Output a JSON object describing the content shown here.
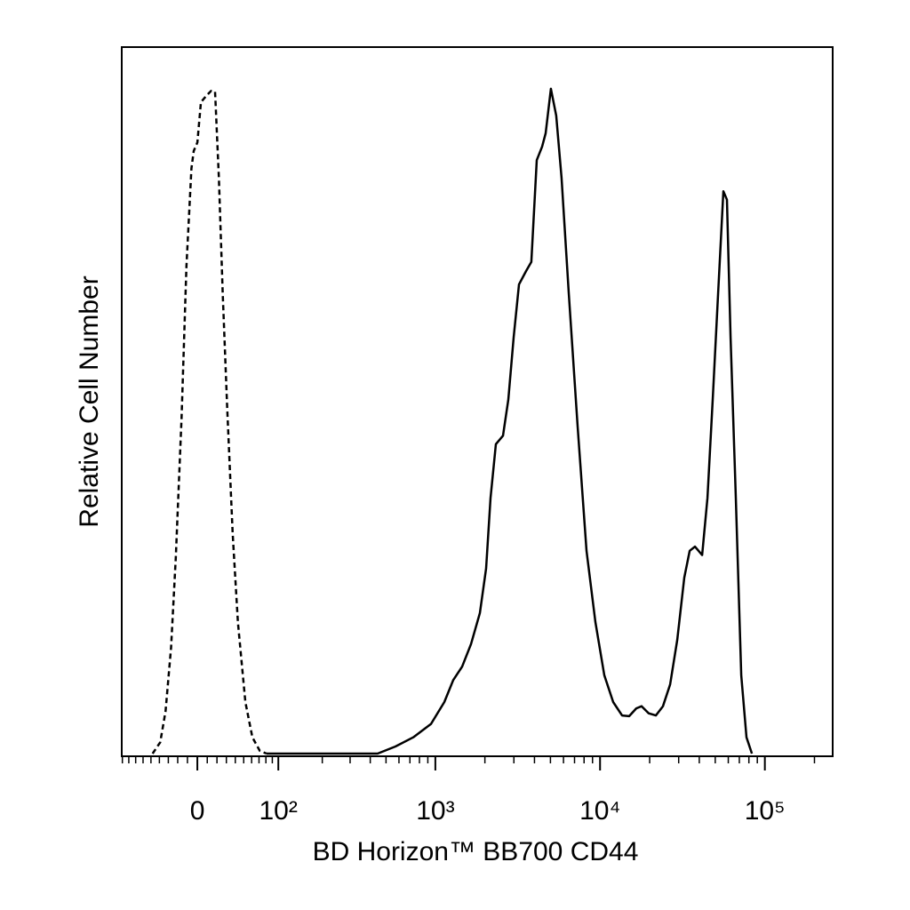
{
  "chart_data": {
    "type": "line",
    "xlabel": "BD Horizon™ BB700 CD44",
    "ylabel": "Relative Cell Number",
    "xscale": "biexponential",
    "xlim": [
      -91,
      258000
    ],
    "ylim": [
      0,
      100
    ],
    "xticks": [
      {
        "value": 0,
        "label": "0"
      },
      {
        "value": 100,
        "label": "10²"
      },
      {
        "value": 1000,
        "label": "10³"
      },
      {
        "value": 10000,
        "label": "10⁴"
      },
      {
        "value": 100000,
        "label": "10⁵"
      }
    ],
    "xminorticks": [
      -90,
      -80,
      -70,
      -60,
      -50,
      -40,
      -30,
      -20,
      -10,
      10,
      20,
      30,
      40,
      50,
      60,
      70,
      80,
      90,
      200,
      300,
      400,
      500,
      600,
      700,
      800,
      900,
      2000,
      3000,
      4000,
      5000,
      6000,
      7000,
      8000,
      9000,
      20000,
      30000,
      40000,
      50000,
      60000,
      70000,
      80000,
      90000,
      200000
    ],
    "series": [
      {
        "color": "#000000",
        "linestyle": "dashed",
        "x": [
          -48,
          -39,
          -33,
          -27,
          -22,
          -16,
          -11,
          -6,
          -3.6,
          0,
          3.6,
          9,
          14,
          18,
          22,
          26,
          31,
          37,
          43,
          52,
          61,
          71,
          81
        ],
        "values": [
          0,
          1.6,
          6,
          15,
          27.7,
          47.5,
          69,
          82.8,
          85.3,
          86.5,
          92.2,
          93.1,
          93.8,
          93.7,
          81.5,
          65.2,
          48.8,
          31.2,
          18.6,
          7.3,
          2.3,
          0.4,
          0
        ]
      },
      {
        "color": "#000000",
        "linestyle": "solid",
        "x": [
          81,
          444,
          571,
          733,
          941,
          1134,
          1284,
          1454,
          1647,
          1865,
          2034,
          2164,
          2333,
          2575,
          2776,
          2989,
          3221,
          3557,
          3830,
          4128,
          4446,
          4674,
          5033,
          5422,
          5841,
          6455,
          7308,
          8273,
          9367,
          10606,
          12010,
          13601,
          15019,
          16589,
          17870,
          19742,
          21809,
          24084,
          26611,
          29390,
          32458,
          34978,
          37670,
          41609,
          44842,
          48283,
          52034,
          56038,
          58896,
          61913,
          66694,
          71885,
          77400,
          83448
        ],
        "values": [
          0,
          0,
          1,
          2.3,
          4.2,
          7.3,
          10.4,
          12.3,
          15.5,
          19.9,
          26.2,
          36.2,
          43.8,
          45,
          50.1,
          58.9,
          66.4,
          68.3,
          69.6,
          84,
          85.9,
          87.8,
          94.1,
          90.3,
          81.5,
          65.2,
          46.3,
          28.7,
          18.6,
          11.1,
          7.3,
          5.4,
          5.3,
          6.4,
          6.7,
          5.7,
          5.4,
          6.7,
          9.8,
          16.1,
          24.9,
          28.7,
          29.3,
          28.1,
          36.2,
          50.1,
          65.2,
          79.6,
          78.4,
          58.9,
          36.2,
          11.1,
          2.3,
          0
        ]
      }
    ]
  }
}
